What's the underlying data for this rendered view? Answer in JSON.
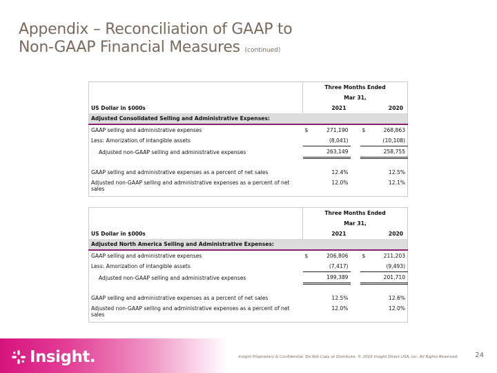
{
  "title": {
    "line1": "Appendix – Reconciliation of GAAP to",
    "line2": "Non-GAAP Financial Measures",
    "suffix": "(continued)"
  },
  "tables": [
    {
      "period_header": "Three Months Ended",
      "period_subheader": "Mar 31,",
      "unit_label": "US Dollar in $000s",
      "year1": "2021",
      "year2": "2020",
      "section_title": "Adjusted Consolidated Selling and Administrative Expenses:",
      "rows": [
        {
          "label": "GAAP selling and administrative expenses",
          "cur1": "$",
          "v1": "271,190",
          "cur2": "$",
          "v2": "268,863"
        },
        {
          "label": "Less:  Amorization of intangible assets",
          "v1": "(8,041)",
          "v2": "(10,108)"
        },
        {
          "label": "Adjusted non-GAAP selling and administrative expenses",
          "v1": "263,149",
          "v2": "258,755"
        },
        {
          "label": "GAAP selling and administrative expenses as a percent of net sales",
          "v1": "12.4%",
          "v2": "12.5%"
        },
        {
          "label": "Adjusted non-GAAP selling and administrative expenses as a percent of net sales",
          "v1": "12.0%",
          "v2": "12.1%"
        }
      ]
    },
    {
      "period_header": "Three Months Ended",
      "period_subheader": "Mar 31,",
      "unit_label": "US Dollar in $000s",
      "year1": "2021",
      "year2": "2020",
      "section_title": "Adjusted North America Selling and Administrative Expenses:",
      "rows": [
        {
          "label": "GAAP selling and administrative expenses",
          "cur1": "$",
          "v1": "206,806",
          "cur2": "$",
          "v2": "211,203"
        },
        {
          "label": "Less:  Amorization of intangible assets",
          "v1": "(7,417)",
          "v2": "(9,493)"
        },
        {
          "label": "Adjusted non-GAAP selling and administrative expenses",
          "v1": "199,389",
          "v2": "201,710"
        },
        {
          "label": "GAAP selling and administrative expenses as a percent of net sales",
          "v1": "12.5%",
          "v2": "12.6%"
        },
        {
          "label": "Adjusted non-GAAP selling and administrative expenses as a percent of net sales",
          "v1": "12.0%",
          "v2": "12.0%"
        }
      ]
    }
  ],
  "footer": {
    "logo_text": "Insight.",
    "confidential": "Insight Proprietary & Confidential. Do Not Copy or Distribute. © 2019 Insight Direct USA, Inc. All Rights Reserved.",
    "page_number": "24"
  },
  "colors": {
    "title": "#7a6a5c",
    "accent": "#8e1a6e",
    "brand_pink": "#d7137e",
    "section_bg": "#dcdcdc"
  }
}
